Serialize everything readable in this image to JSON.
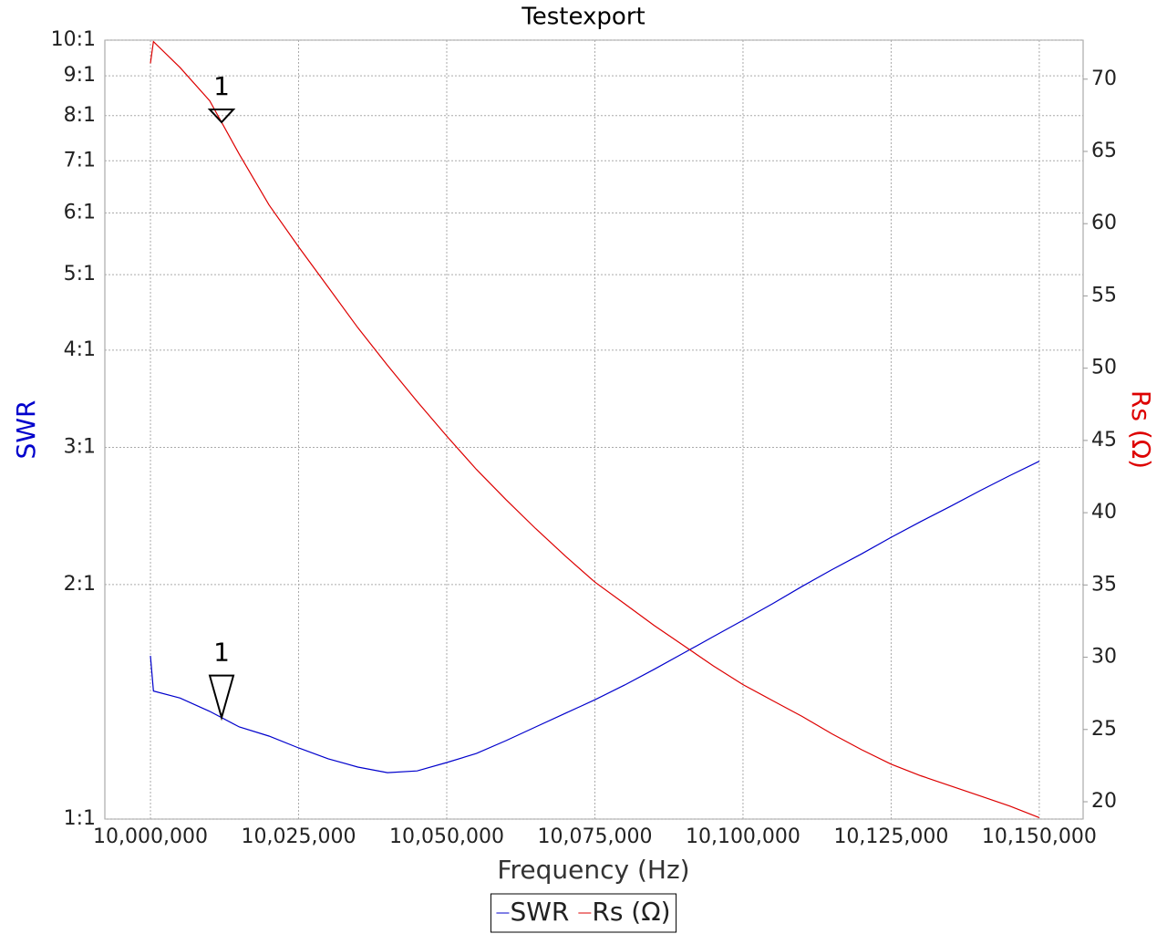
{
  "chart_data": {
    "type": "line",
    "title": "Testexport",
    "x_label": "Frequency (Hz)",
    "y_label": "SWR",
    "y2_label": "Rs (Ω)",
    "x": [
      10000000,
      10000500,
      10005000,
      10010000,
      10015000,
      10020000,
      10025000,
      10030000,
      10035000,
      10040000,
      10045000,
      10050000,
      10055000,
      10060000,
      10065000,
      10070000,
      10075000,
      10080000,
      10085000,
      10090000,
      10095000,
      10100000,
      10105000,
      10110000,
      10115000,
      10120000,
      10125000,
      10130000,
      10135000,
      10140000,
      10145000,
      10150000
    ],
    "series": [
      {
        "name": "SWR",
        "color": "#0000cc",
        "axis": "y",
        "values": [
          1.62,
          1.46,
          1.43,
          1.375,
          1.313,
          1.278,
          1.234,
          1.195,
          1.166,
          1.147,
          1.153,
          1.182,
          1.214,
          1.261,
          1.313,
          1.367,
          1.423,
          1.486,
          1.557,
          1.634,
          1.715,
          1.8,
          1.89,
          1.99,
          2.09,
          2.19,
          2.3,
          2.41,
          2.52,
          2.64,
          2.76,
          2.88
        ]
      },
      {
        "name": "Rs (Ω)",
        "color": "#dd0000",
        "axis": "y2",
        "values": [
          71.1,
          72.6,
          70.8,
          68.5,
          64.8,
          61.3,
          58.4,
          55.6,
          52.8,
          50.2,
          47.7,
          45.3,
          43.0,
          40.9,
          38.9,
          37.0,
          35.2,
          33.7,
          32.2,
          30.8,
          29.4,
          28.1,
          27.0,
          25.9,
          24.7,
          23.6,
          22.6,
          21.8,
          21.1,
          20.4,
          19.7,
          18.9
        ]
      }
    ],
    "markers": [
      {
        "label": "1",
        "x": 10012000,
        "series": 0
      },
      {
        "label": "1",
        "x": 10012000,
        "series": 1
      }
    ],
    "xlim": [
      9992300,
      10157400
    ],
    "xticks": [
      {
        "value": 10000000,
        "label": "10,000,000"
      },
      {
        "value": 10025000,
        "label": "10,025,000"
      },
      {
        "value": 10050000,
        "label": "10,050,000"
      },
      {
        "value": 10075000,
        "label": "10,075,000"
      },
      {
        "value": 10100000,
        "label": "10,100,000"
      },
      {
        "value": 10125000,
        "label": "10,125,000"
      },
      {
        "value": 10150000,
        "label": "10,150,000"
      }
    ],
    "ylim": [
      1,
      10
    ],
    "y_log": true,
    "yticks": [
      {
        "value": 1,
        "label": "1:1"
      },
      {
        "value": 2,
        "label": "2:1"
      },
      {
        "value": 3,
        "label": "3:1"
      },
      {
        "value": 4,
        "label": "4:1"
      },
      {
        "value": 5,
        "label": "5:1"
      },
      {
        "value": 6,
        "label": "6:1"
      },
      {
        "value": 7,
        "label": "7:1"
      },
      {
        "value": 8,
        "label": "8:1"
      },
      {
        "value": 9,
        "label": "9:1"
      },
      {
        "value": 10,
        "label": "10:1"
      }
    ],
    "y2lim": [
      18.8,
      72.7
    ],
    "y2ticks": [
      20,
      25,
      30,
      35,
      40,
      45,
      50,
      55,
      60,
      65,
      70
    ],
    "grid": true,
    "legend": "bottom"
  }
}
